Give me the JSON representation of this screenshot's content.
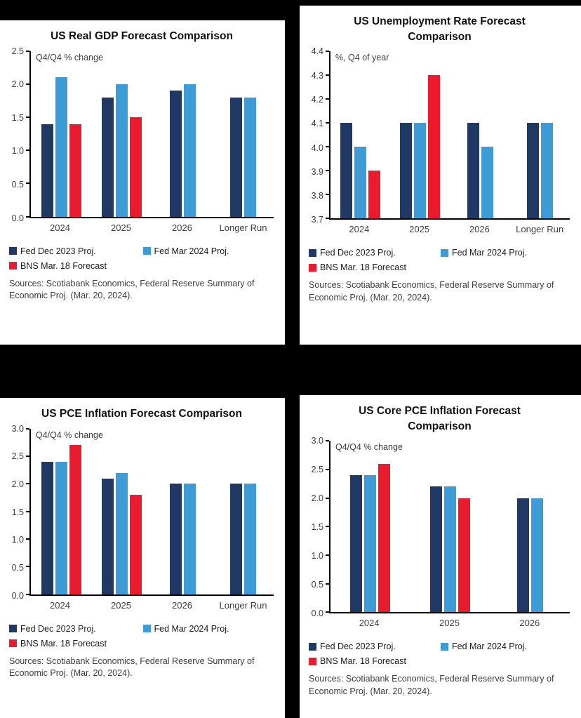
{
  "page": {
    "background": "#000000"
  },
  "chart_data": [
    {
      "type": "bar",
      "title": "US Real GDP Forecast Comparison",
      "subtitle": "Q4/Q4 % change",
      "categories": [
        "2024",
        "2025",
        "2026",
        "Longer Run"
      ],
      "series": [
        {
          "name": "Fed Dec 2023 Proj.",
          "color": "#1f3864",
          "values": [
            1.4,
            1.8,
            1.9,
            1.8
          ]
        },
        {
          "name": "Fed Mar 2024 Proj.",
          "color": "#3d9bd6",
          "values": [
            2.1,
            2.0,
            2.0,
            1.8
          ]
        },
        {
          "name": "BNS Mar. 18 Forecast",
          "color": "#ea1b2e",
          "values": [
            1.4,
            1.5,
            null,
            null
          ]
        }
      ],
      "ylim": [
        0,
        2.5
      ],
      "ytick_values": [
        0,
        0.5,
        1.0,
        1.5,
        2.0,
        2.5
      ],
      "ytick_labels": [
        "0.0",
        "0.5",
        "1.0",
        "1.5",
        "2.0",
        "2.5"
      ],
      "grid": false,
      "legend_position": "bottom",
      "sources": "Sources: Scotiabank Economics, Federal Reserve Summary of Economic Proj. (Mar. 20, 2024)."
    },
    {
      "type": "bar",
      "title": "US Unemployment Rate Forecast Comparison",
      "subtitle": "%, Q4 of year",
      "categories": [
        "2024",
        "2025",
        "2026",
        "Longer Run"
      ],
      "series": [
        {
          "name": "Fed Dec 2023 Proj.",
          "color": "#1f3864",
          "values": [
            4.1,
            4.1,
            4.1,
            4.1
          ]
        },
        {
          "name": "Fed Mar 2024 Proj.",
          "color": "#3d9bd6",
          "values": [
            4.0,
            4.1,
            4.0,
            4.1
          ]
        },
        {
          "name": "BNS Mar. 18 Forecast",
          "color": "#ea1b2e",
          "values": [
            3.9,
            4.3,
            null,
            null
          ]
        }
      ],
      "ylim": [
        3.7,
        4.4
      ],
      "ytick_values": [
        3.7,
        3.8,
        3.9,
        4.0,
        4.1,
        4.2,
        4.3,
        4.4
      ],
      "ytick_labels": [
        "3.7",
        "3.8",
        "3.9",
        "4.0",
        "4.1",
        "4.2",
        "4.3",
        "4.4"
      ],
      "grid": false,
      "legend_position": "bottom",
      "sources": "Sources: Scotiabank Economics, Federal Reserve Summary of Economic Proj. (Mar. 20, 2024)."
    },
    {
      "type": "bar",
      "title": "US PCE Inflation Forecast Comparison",
      "subtitle": "Q4/Q4 % change",
      "categories": [
        "2024",
        "2025",
        "2026",
        "Longer Run"
      ],
      "series": [
        {
          "name": "Fed Dec 2023 Proj.",
          "color": "#1f3864",
          "values": [
            2.4,
            2.1,
            2.0,
            2.0
          ]
        },
        {
          "name": "Fed Mar 2024 Proj.",
          "color": "#3d9bd6",
          "values": [
            2.4,
            2.2,
            2.0,
            2.0
          ]
        },
        {
          "name": "BNS Mar. 18 Forecast",
          "color": "#ea1b2e",
          "values": [
            2.7,
            1.8,
            null,
            null
          ]
        }
      ],
      "ylim": [
        0,
        3.0
      ],
      "ytick_values": [
        0,
        0.5,
        1.0,
        1.5,
        2.0,
        2.5,
        3.0
      ],
      "ytick_labels": [
        "0.0",
        "0.5",
        "1.0",
        "1.5",
        "2.0",
        "2.5",
        "3.0"
      ],
      "grid": false,
      "legend_position": "bottom",
      "sources": "Sources: Scotiabank Economics, Federal Reserve Summary of Economic Proj. (Mar. 20, 2024)."
    },
    {
      "type": "bar",
      "title": "US Core PCE Inflation Forecast Comparison",
      "subtitle": "Q4/Q4 % change",
      "categories": [
        "2024",
        "2025",
        "2026"
      ],
      "series": [
        {
          "name": "Fed Dec 2023 Proj.",
          "color": "#1f3864",
          "values": [
            2.4,
            2.2,
            2.0
          ]
        },
        {
          "name": "Fed Mar 2024 Proj.",
          "color": "#3d9bd6",
          "values": [
            2.4,
            2.2,
            2.0
          ]
        },
        {
          "name": "BNS Mar. 18 Forecast",
          "color": "#ea1b2e",
          "values": [
            2.6,
            2.0,
            null
          ]
        }
      ],
      "ylim": [
        0,
        3.0
      ],
      "ytick_values": [
        0,
        0.5,
        1.0,
        1.5,
        2.0,
        2.5,
        3.0
      ],
      "ytick_labels": [
        "0.0",
        "0.5",
        "1.0",
        "1.5",
        "2.0",
        "2.5",
        "3.0"
      ],
      "grid": false,
      "legend_position": "bottom",
      "sources": "Sources: Scotiabank Economics, Federal Reserve Summary of Economic Proj. (Mar. 20, 2024)."
    }
  ]
}
